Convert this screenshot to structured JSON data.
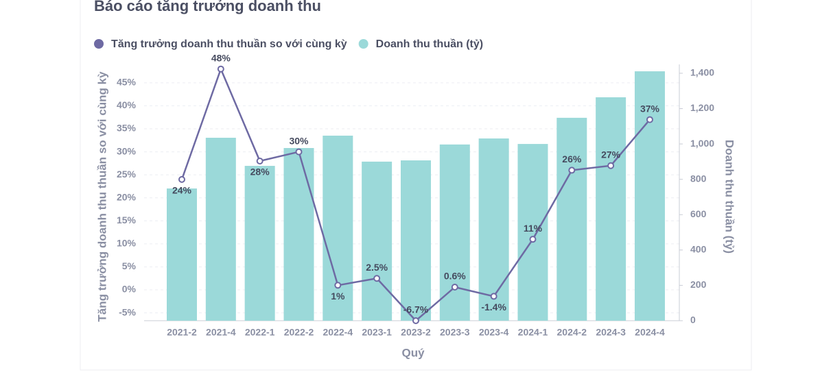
{
  "chart_data": {
    "type": "combo",
    "title": "Báo cáo tăng trưởng doanh thu",
    "x_label": "Quý",
    "y_label": "Tăng trưởng doanh thu thuần so với cùng kỳ",
    "y2_label": "Doanh thu thuần (tỷ)",
    "categories": [
      "2021-2",
      "2021-4",
      "2022-1",
      "2022-2",
      "2022-4",
      "2023-1",
      "2023-2",
      "2023-3",
      "2023-4",
      "2024-1",
      "2024-2",
      "2024-3",
      "2024-4"
    ],
    "series": [
      {
        "name": "Tăng trưởng doanh thu thuần so với cùng kỳ",
        "type": "line",
        "color": "#6e6aa3",
        "values": [
          24,
          48,
          28,
          30,
          1,
          2.5,
          -6.7,
          0.6,
          -1.4,
          11,
          26,
          27,
          37
        ],
        "value_labels": [
          "24%",
          "48%",
          "28%",
          "30%",
          "1%",
          "2.5%",
          "-6.7%",
          "0.6%",
          "-1.4%",
          "11%",
          "26%",
          "27%",
          "37%"
        ]
      },
      {
        "name": "Doanh thu thuần (tỷ)",
        "type": "bar",
        "axis": "y2",
        "color": "#9bd9d9",
        "values": [
          748,
          1035,
          876,
          977,
          1047,
          900,
          907,
          997,
          1031,
          1000,
          1148,
          1264,
          1411
        ]
      }
    ],
    "ylim": [
      -6.7,
      49
    ],
    "yticks": [
      {
        "value": -5,
        "label": "-5%"
      },
      {
        "value": 0,
        "label": "0%"
      },
      {
        "value": 5,
        "label": "5%"
      },
      {
        "value": 10,
        "label": "10%"
      },
      {
        "value": 15,
        "label": "15%"
      },
      {
        "value": 20,
        "label": "20%"
      },
      {
        "value": 25,
        "label": "25%"
      },
      {
        "value": 30,
        "label": "30%"
      },
      {
        "value": 35,
        "label": "35%"
      },
      {
        "value": 40,
        "label": "40%"
      },
      {
        "value": 45,
        "label": "45%"
      }
    ],
    "y2lim": [
      0,
      1450
    ],
    "y2ticks": [
      0,
      200,
      400,
      600,
      800,
      {
        "value": 1000,
        "label": "1,000"
      },
      {
        "value": 1200,
        "label": "1,200"
      },
      {
        "value": 1400,
        "label": "1,400"
      }
    ],
    "grid": true
  }
}
